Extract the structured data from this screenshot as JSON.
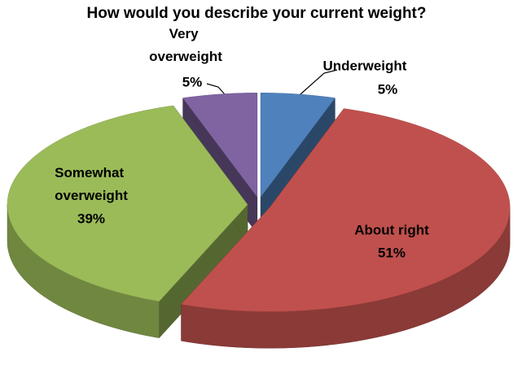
{
  "chart_data": {
    "type": "pie",
    "title": "How would you describe your current weight?",
    "categories": [
      "Underweight",
      "About right",
      "Somewhat overweight",
      "Very overweight"
    ],
    "values": [
      5,
      51,
      39,
      5
    ],
    "value_labels": [
      "5%",
      "51%",
      "39%",
      "5%"
    ],
    "colors": [
      "#4f81bd",
      "#c0504d",
      "#9bbb59",
      "#8064a2"
    ]
  }
}
